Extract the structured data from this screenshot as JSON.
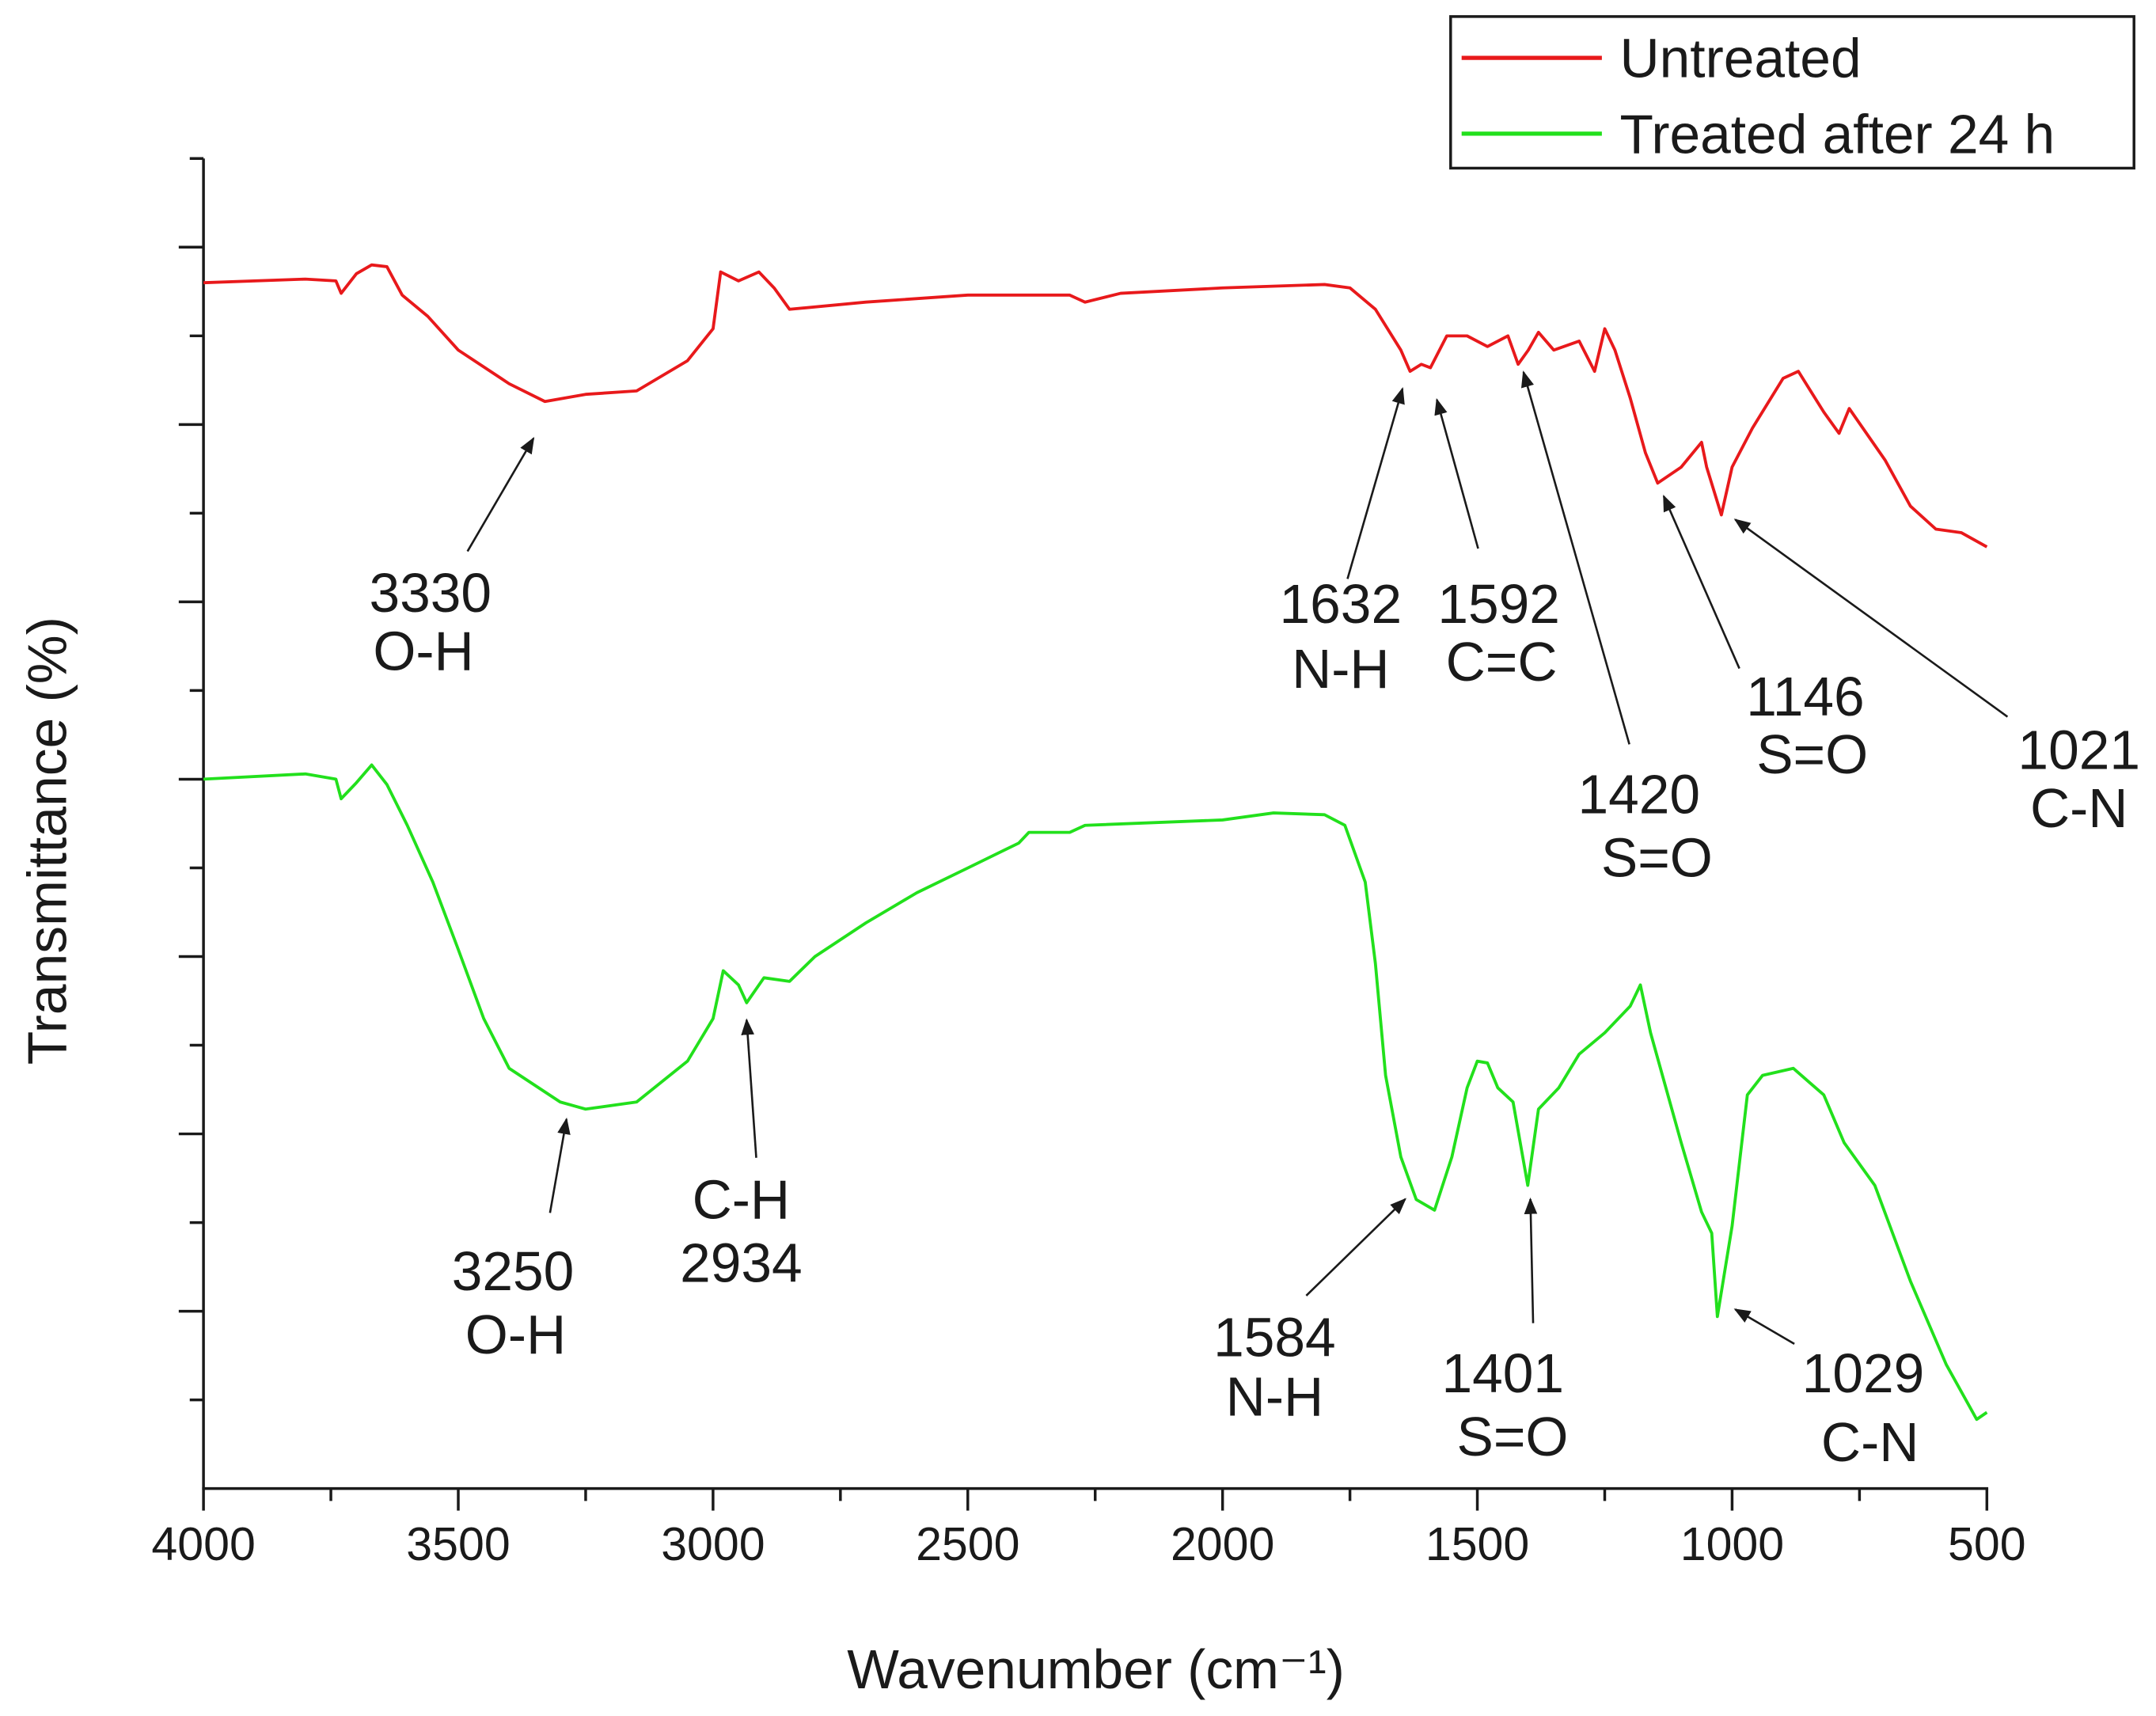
{
  "chart_data": {
    "type": "line",
    "xlabel": "Wavenumber (cm⁻¹)",
    "ylabel": "Transmittance (%)",
    "xlim": [
      4000,
      500
    ],
    "xticks": [
      4000,
      3500,
      3000,
      2500,
      2000,
      1500,
      1000,
      500
    ],
    "xminorticks": [
      3750,
      3250,
      2750,
      2250,
      1750,
      1250,
      750
    ],
    "ylim": [
      0,
      7.5
    ],
    "yticks": [
      1,
      2,
      3,
      4,
      5,
      6,
      7
    ],
    "yminorticks": [
      0.5,
      1.5,
      2.5,
      3.5,
      4.5,
      5.5,
      6.5,
      7.5
    ],
    "legend": "top-right",
    "series": [
      {
        "name": "Untreated",
        "color": "#e8191b",
        "x": [
          4000,
          3800,
          3740,
          3730,
          3700,
          3670,
          3640,
          3610,
          3560,
          3500,
          3400,
          3330,
          3250,
          3150,
          3050,
          3000,
          2985,
          2950,
          2910,
          2880,
          2850,
          2700,
          2500,
          2300,
          2270,
          2200,
          2000,
          1800,
          1750,
          1700,
          1650,
          1632,
          1610,
          1592,
          1560,
          1520,
          1480,
          1440,
          1420,
          1400,
          1380,
          1350,
          1300,
          1270,
          1250,
          1230,
          1200,
          1170,
          1146,
          1100,
          1060,
          1050,
          1021,
          1000,
          960,
          900,
          870,
          820,
          790,
          770,
          700,
          650,
          600,
          550,
          500
        ],
        "values": [
          6.8,
          6.82,
          6.81,
          6.74,
          6.85,
          6.9,
          6.89,
          6.73,
          6.61,
          6.42,
          6.23,
          6.13,
          6.17,
          6.19,
          6.36,
          6.54,
          6.86,
          6.81,
          6.86,
          6.77,
          6.65,
          6.69,
          6.73,
          6.73,
          6.69,
          6.74,
          6.77,
          6.79,
          6.77,
          6.65,
          6.42,
          6.3,
          6.34,
          6.32,
          6.5,
          6.5,
          6.44,
          6.5,
          6.34,
          6.42,
          6.52,
          6.42,
          6.47,
          6.3,
          6.54,
          6.42,
          6.15,
          5.84,
          5.67,
          5.76,
          5.9,
          5.76,
          5.49,
          5.76,
          5.98,
          6.26,
          6.3,
          6.07,
          5.95,
          6.09,
          5.8,
          5.54,
          5.41,
          5.39,
          5.31
        ],
        "annotations": [
          [
            "3330",
            "O-H"
          ],
          [
            "1632",
            "N-H"
          ],
          [
            "1592",
            "C=C"
          ],
          [
            "1420",
            "S=O"
          ],
          [
            "1146",
            "S=O"
          ],
          [
            "1021",
            "C-N"
          ]
        ]
      },
      {
        "name": "Treated after 24 h",
        "color": "#22e01c",
        "x": [
          4000,
          3800,
          3740,
          3730,
          3700,
          3670,
          3640,
          3600,
          3550,
          3500,
          3450,
          3400,
          3300,
          3250,
          3150,
          3050,
          3000,
          2980,
          2950,
          2934,
          2900,
          2850,
          2800,
          2700,
          2600,
          2500,
          2400,
          2380,
          2300,
          2270,
          2000,
          1900,
          1800,
          1760,
          1720,
          1700,
          1680,
          1650,
          1620,
          1584,
          1550,
          1520,
          1500,
          1480,
          1460,
          1430,
          1401,
          1380,
          1340,
          1300,
          1250,
          1200,
          1180,
          1160,
          1100,
          1060,
          1040,
          1029,
          1000,
          970,
          940,
          880,
          820,
          780,
          720,
          650,
          580,
          520,
          500
        ],
        "values": [
          4.0,
          4.03,
          4.0,
          3.89,
          3.98,
          4.08,
          3.97,
          3.74,
          3.42,
          3.04,
          2.65,
          2.37,
          2.18,
          2.14,
          2.18,
          2.41,
          2.65,
          2.92,
          2.84,
          2.74,
          2.88,
          2.86,
          3.0,
          3.19,
          3.36,
          3.5,
          3.64,
          3.7,
          3.7,
          3.74,
          3.77,
          3.81,
          3.8,
          3.74,
          3.42,
          2.96,
          2.33,
          1.87,
          1.63,
          1.57,
          1.87,
          2.26,
          2.41,
          2.4,
          2.26,
          2.18,
          1.71,
          2.14,
          2.26,
          2.45,
          2.57,
          2.72,
          2.84,
          2.57,
          1.95,
          1.56,
          1.44,
          0.97,
          1.48,
          2.22,
          2.33,
          2.37,
          2.22,
          1.95,
          1.71,
          1.17,
          0.7,
          0.39,
          0.43
        ],
        "annotations": [
          [
            "3250",
            "O-H"
          ],
          [
            "C-H",
            "2934"
          ],
          [
            "1584",
            "N-H"
          ],
          [
            "1401",
            "S=O"
          ],
          [
            "1029",
            "C-N"
          ]
        ]
      }
    ]
  }
}
